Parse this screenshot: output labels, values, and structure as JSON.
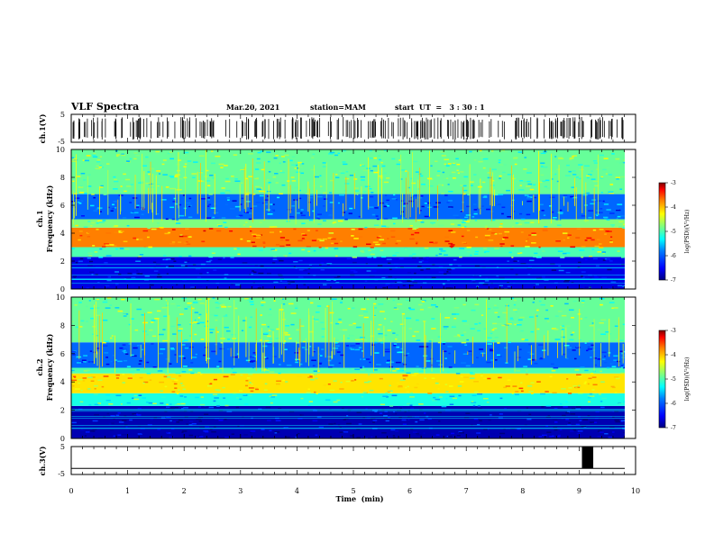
{
  "header": {
    "title": "VLF Spectra",
    "date": "Mar.20, 2021",
    "station": "station=MAM",
    "start": "start  UT  =   3 : 30 : 1"
  },
  "chart_data": [
    {
      "type": "line",
      "panel": "ch1-waveform",
      "ylabel": "ch.1(V)",
      "ylim": [
        -5,
        5
      ],
      "yticks": [
        "5",
        "-5"
      ],
      "description_series": [
        {
          "name": "ch.1",
          "kind": "dense spikes",
          "xlim": [
            0,
            9.85
          ]
        }
      ]
    },
    {
      "type": "heatmap",
      "panel": "ch1-spectrogram",
      "ylabel": "ch.1\nFrequency (kHz)",
      "ylim": [
        0,
        10
      ],
      "yticks": [
        "0",
        "2",
        "4",
        "6",
        "8",
        "10"
      ],
      "xlim": [
        0,
        9.85
      ],
      "bands": [
        {
          "from": 0.0,
          "to": 2.3,
          "level": -6.6
        },
        {
          "from": 2.3,
          "to": 3.0,
          "level": -5.2
        },
        {
          "from": 3.0,
          "to": 4.4,
          "level": -4.0
        },
        {
          "from": 4.4,
          "to": 5.0,
          "level": -5.0
        },
        {
          "from": 5.0,
          "to": 6.8,
          "level": -6.1
        },
        {
          "from": 6.8,
          "to": 10.0,
          "level": -5.1
        }
      ],
      "colorbar": {
        "label": "log(PSD)(V²/Hz)",
        "range": [
          -7,
          -3
        ],
        "ticks": [
          "-3",
          "-4",
          "-5",
          "-6",
          "-7"
        ]
      }
    },
    {
      "type": "heatmap",
      "panel": "ch2-spectrogram",
      "ylabel": "ch.2\nFrequency (kHz)",
      "ylim": [
        0,
        10
      ],
      "yticks": [
        "0",
        "2",
        "4",
        "6",
        "8",
        "10"
      ],
      "xlim": [
        0,
        9.85
      ],
      "bands": [
        {
          "from": 0.0,
          "to": 2.3,
          "level": -6.8
        },
        {
          "from": 2.3,
          "to": 3.2,
          "level": -5.4
        },
        {
          "from": 3.2,
          "to": 4.6,
          "level": -4.4
        },
        {
          "from": 4.6,
          "to": 5.0,
          "level": -5.2
        },
        {
          "from": 5.0,
          "to": 6.8,
          "level": -6.1
        },
        {
          "from": 6.8,
          "to": 10.0,
          "level": -5.1
        }
      ],
      "colorbar": {
        "label": "log(PSD)(V²/Hz)",
        "range": [
          -7,
          -3
        ],
        "ticks": [
          "-3",
          "-4",
          "-5",
          "-6",
          "-7"
        ]
      }
    },
    {
      "type": "line",
      "panel": "ch3-waveform",
      "ylabel": "ch.3(V)",
      "ylim": [
        -5,
        5
      ],
      "yticks": [
        "5",
        "-5"
      ],
      "xlabel": "Time  (min)",
      "xlim": [
        0,
        10
      ],
      "xticks": [
        "0",
        "1",
        "2",
        "3",
        "4",
        "5",
        "6",
        "7",
        "8",
        "9",
        "10"
      ],
      "baseline": -2.5,
      "pulse": {
        "x_start": 9.05,
        "x_end": 9.25,
        "y_top": 5
      }
    }
  ],
  "colors": {
    "colormap": [
      "#00007f",
      "#0000ff",
      "#007fff",
      "#00ffff",
      "#7fff7f",
      "#ffff00",
      "#ff7f00",
      "#ff0000",
      "#7f0000"
    ]
  }
}
